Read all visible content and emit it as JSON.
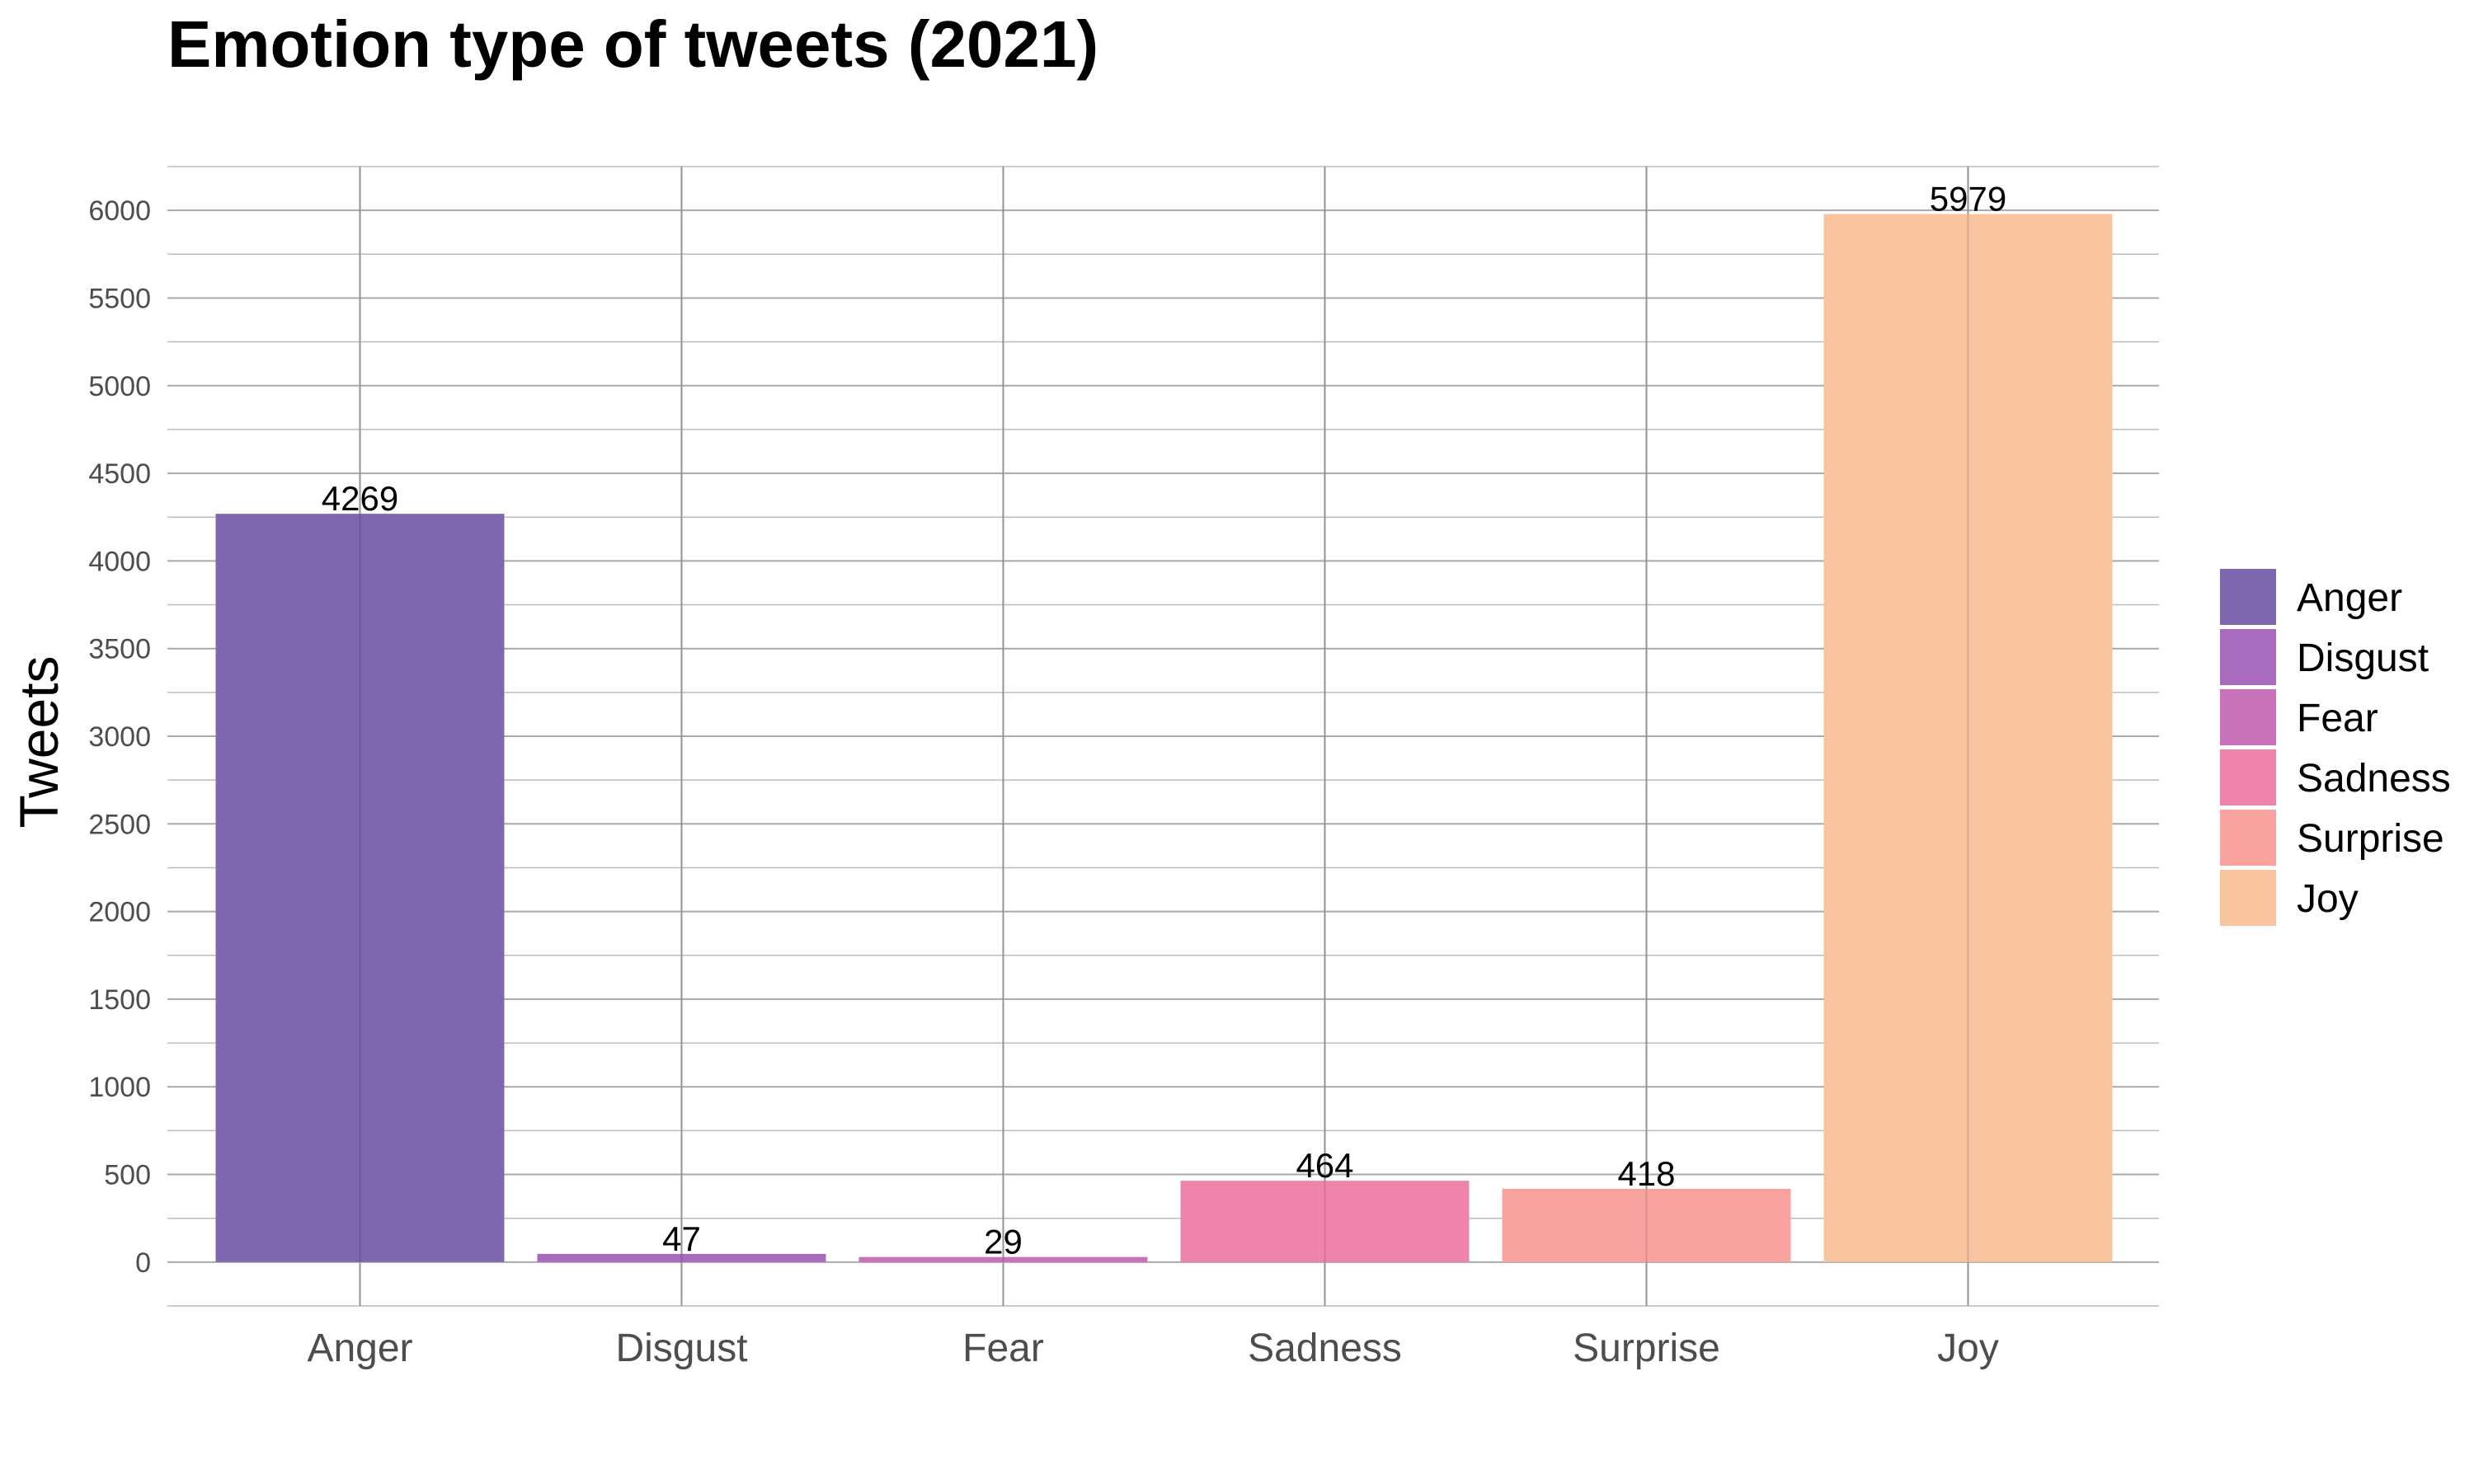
{
  "chart_data": {
    "type": "bar",
    "title": "Emotion type of tweets (2021)",
    "xlabel": "",
    "ylabel": "Tweets",
    "categories": [
      "Anger",
      "Disgust",
      "Fear",
      "Sadness",
      "Surprise",
      "Joy"
    ],
    "values": [
      4269,
      47,
      29,
      464,
      418,
      5979
    ],
    "data_labels": [
      "4269",
      "47",
      "29",
      "464",
      "418",
      "5979"
    ],
    "colors": [
      "#7f67b0",
      "#a86bbd",
      "#c972ba",
      "#ee84ab",
      "#f9a3a1",
      "#f8c39f"
    ],
    "ylim": [
      -250,
      6250
    ],
    "yticks": [
      0,
      500,
      1000,
      1500,
      2000,
      2500,
      3000,
      3500,
      4000,
      4500,
      5000,
      5500,
      6000
    ],
    "ytick_labels": [
      "0",
      "500",
      "1000",
      "1500",
      "2000",
      "2500",
      "3000",
      "3500",
      "4000",
      "4500",
      "5000",
      "5500",
      "6000"
    ],
    "grid": true,
    "legend": {
      "placement": "right",
      "entries": [
        "Anger",
        "Disgust",
        "Fear",
        "Sadness",
        "Surprise",
        "Joy"
      ]
    }
  }
}
